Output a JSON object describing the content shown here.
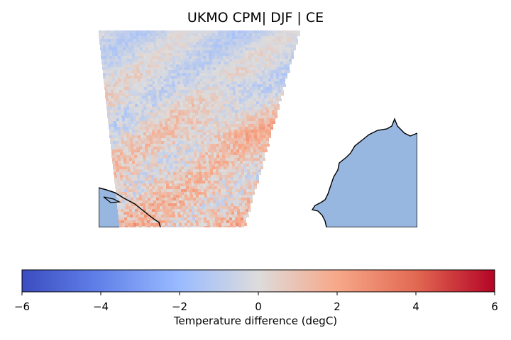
{
  "title": "UKMO CPM| DJF | CE",
  "colors": {
    "land": "#98b7e0",
    "coastline": "#000000",
    "cmap_low": "#3b4cc0",
    "cmap_mid": "#dddddd",
    "cmap_high": "#b40426"
  },
  "colorbar": {
    "label": "Temperature difference (degC)",
    "min": -6,
    "max": 6,
    "colormap": "coolwarm",
    "ticks": [
      {
        "value": -6,
        "label": "−6"
      },
      {
        "value": -4,
        "label": "−4"
      },
      {
        "value": -2,
        "label": "−2"
      },
      {
        "value": 0,
        "label": "0"
      },
      {
        "value": 2,
        "label": "2"
      },
      {
        "value": 4,
        "label": "4"
      },
      {
        "value": 6,
        "label": "6"
      }
    ]
  },
  "field": {
    "description_units": "degC",
    "typical_range": [
      -2,
      3
    ]
  }
}
